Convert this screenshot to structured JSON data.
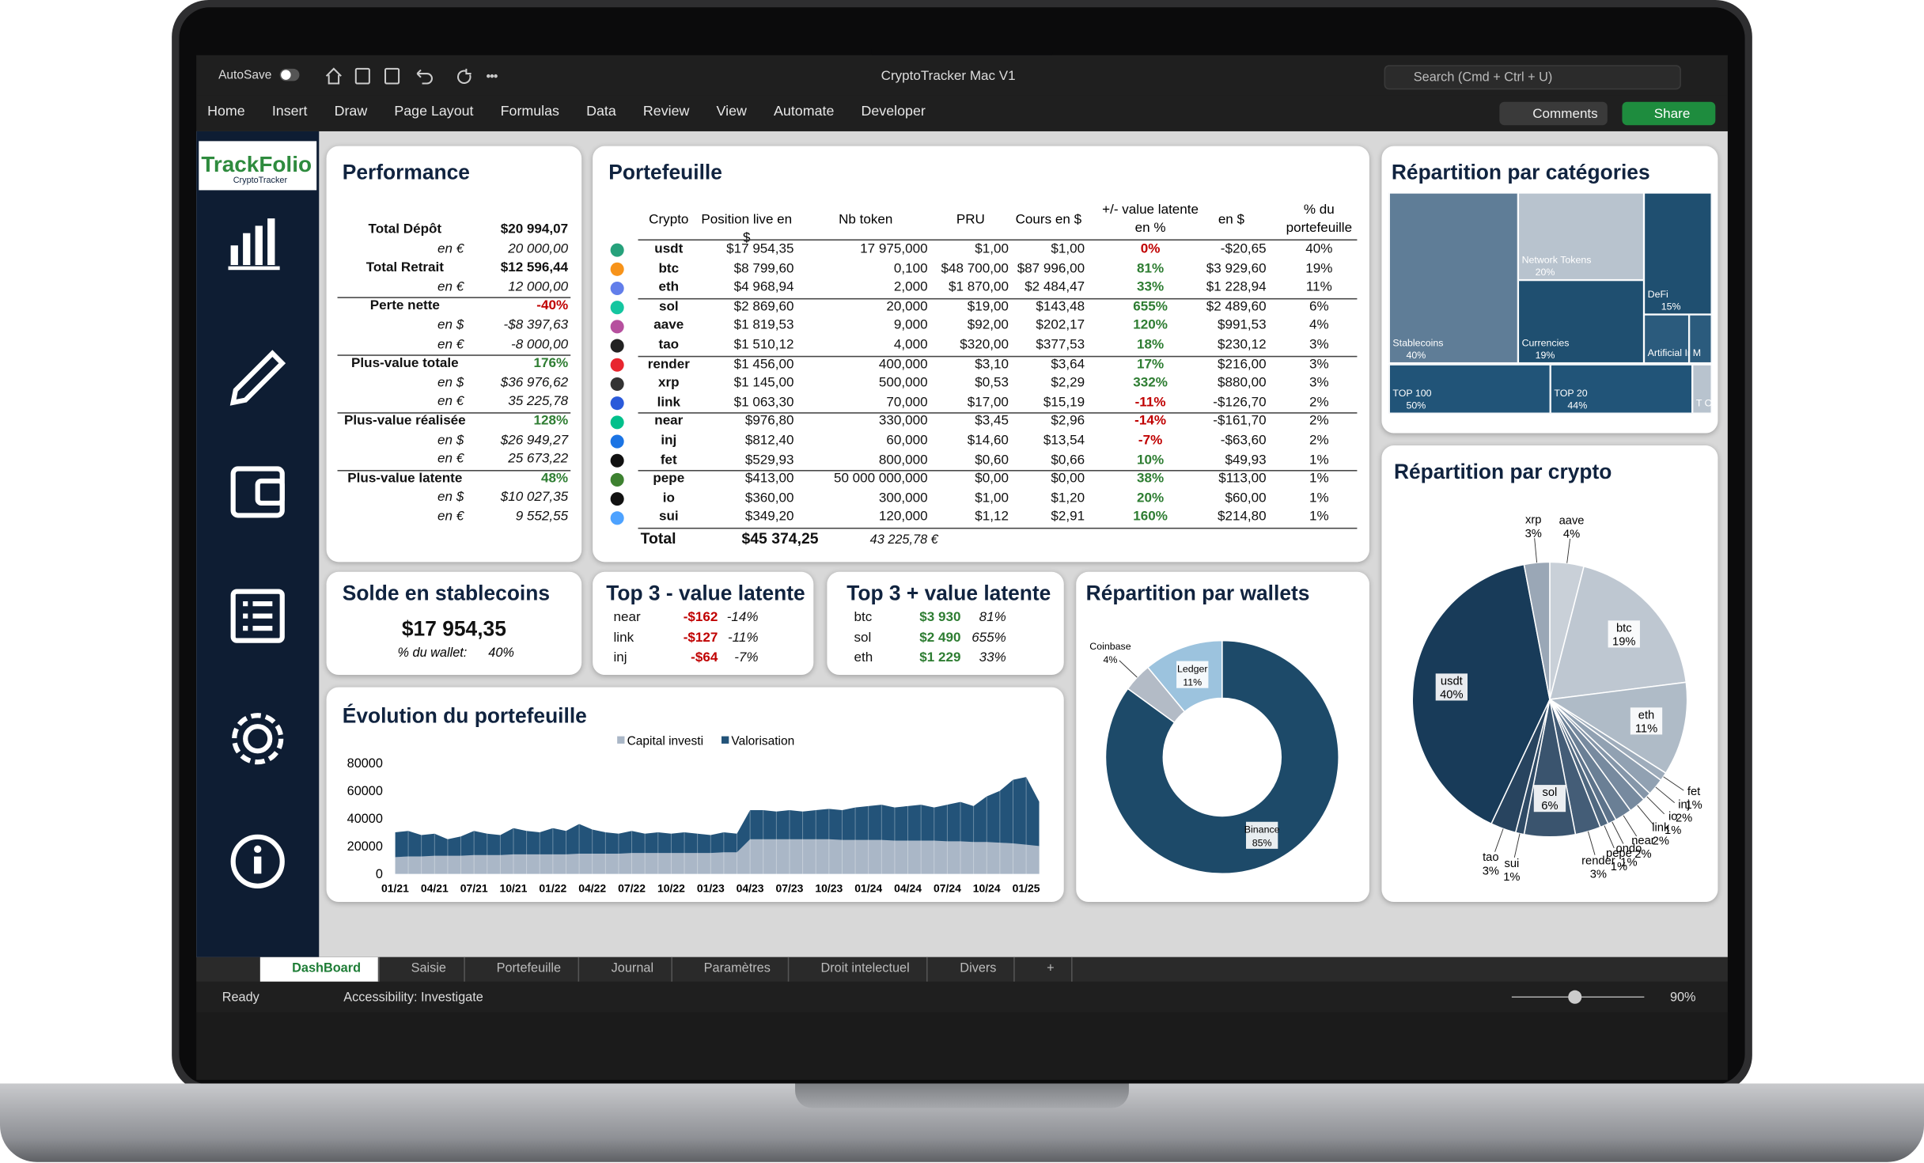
{
  "app": {
    "autosave": "AutoSave",
    "title": "CryptoTracker Mac V1",
    "search": "Search (Cmd + Ctrl + U)",
    "menu": [
      "Home",
      "Insert",
      "Draw",
      "Page Layout",
      "Formulas",
      "Data",
      "Review",
      "View",
      "Automate",
      "Developer"
    ],
    "comments": "Comments",
    "share": "Share"
  },
  "logo": {
    "name": "TrackFolio",
    "subtitle": "CryptoTracker"
  },
  "performance": {
    "title": "Performance",
    "groups": [
      {
        "label": "Total Dépôt",
        "value": "$20 994,07",
        "sub": [
          {
            "label": "en €",
            "value": "20 000,00"
          }
        ]
      },
      {
        "label": "Total Retrait",
        "value": "$12 596,44",
        "sub": [
          {
            "label": "en €",
            "value": "12 000,00"
          }
        ]
      },
      {
        "label": "Perte nette",
        "value": "-40%",
        "sub": [
          {
            "label": "en $",
            "value": "-$8 397,63"
          },
          {
            "label": "en €",
            "value": "-8 000,00"
          }
        ]
      },
      {
        "label": "Plus-value totale",
        "value": "176%",
        "sub": [
          {
            "label": "en $",
            "value": "$36 976,62"
          },
          {
            "label": "en €",
            "value": "35 225,78"
          }
        ]
      },
      {
        "label": "Plus-value réalisée",
        "value": "128%",
        "sub": [
          {
            "label": "en $",
            "value": "$26 949,27"
          },
          {
            "label": "en €",
            "value": "25 673,22"
          }
        ]
      },
      {
        "label": "Plus-value latente",
        "value": "48%",
        "sub": [
          {
            "label": "en $",
            "value": "$10 027,35"
          },
          {
            "label": "en €",
            "value": "9 552,55"
          }
        ]
      }
    ]
  },
  "portfolio": {
    "title": "Portefeuille",
    "headers": [
      "Crypto",
      "Position live en $",
      "Nb token",
      "PRU",
      "Cours en $",
      "+/- value latente en %",
      "en $",
      "% du portefeuille"
    ],
    "rows": [
      [
        "usdt",
        "$17 954,35",
        "17 975,000",
        "$1,00",
        "$1,00",
        "0%",
        "-$20,65",
        "40%"
      ],
      [
        "btc",
        "$8 799,60",
        "0,100",
        "$48 700,00",
        "$87 996,00",
        "81%",
        "$3 929,60",
        "19%"
      ],
      [
        "eth",
        "$4 968,94",
        "2,000",
        "$1 870,00",
        "$2 484,47",
        "33%",
        "$1 228,94",
        "11%"
      ],
      [
        "sol",
        "$2 869,60",
        "20,000",
        "$19,00",
        "$143,48",
        "655%",
        "$2 489,60",
        "6%"
      ],
      [
        "aave",
        "$1 819,53",
        "9,000",
        "$92,00",
        "$202,17",
        "120%",
        "$991,53",
        "4%"
      ],
      [
        "tao",
        "$1 510,12",
        "4,000",
        "$320,00",
        "$377,53",
        "18%",
        "$230,12",
        "3%"
      ],
      [
        "render",
        "$1 456,00",
        "400,000",
        "$3,10",
        "$3,64",
        "17%",
        "$216,00",
        "3%"
      ],
      [
        "xrp",
        "$1 145,00",
        "500,000",
        "$0,53",
        "$2,29",
        "332%",
        "$880,00",
        "3%"
      ],
      [
        "link",
        "$1 063,30",
        "70,000",
        "$17,00",
        "$15,19",
        "-11%",
        "-$126,70",
        "2%"
      ],
      [
        "near",
        "$976,80",
        "330,000",
        "$3,45",
        "$2,96",
        "-14%",
        "-$161,70",
        "2%"
      ],
      [
        "inj",
        "$812,40",
        "60,000",
        "$14,60",
        "$13,54",
        "-7%",
        "-$63,60",
        "2%"
      ],
      [
        "fet",
        "$529,93",
        "800,000",
        "$0,60",
        "$0,66",
        "10%",
        "$49,93",
        "1%"
      ],
      [
        "pepe",
        "$413,00",
        "50 000 000,000",
        "$0,00",
        "$0,00",
        "38%",
        "$113,00",
        "1%"
      ],
      [
        "io",
        "$360,00",
        "300,000",
        "$1,00",
        "$1,20",
        "20%",
        "$60,00",
        "1%"
      ],
      [
        "sui",
        "$349,20",
        "120,000",
        "$1,12",
        "$2,91",
        "160%",
        "$214,80",
        "1%"
      ]
    ],
    "total": {
      "label": "Total",
      "value": "$45 374,25",
      "euro": "43 225,78  €"
    }
  },
  "stablecoins": {
    "title": "Solde en stablecoins",
    "value": "$17 954,35",
    "share_label": "% du wallet:",
    "share": "40%"
  },
  "top_minus": {
    "title": "Top 3 - value latente",
    "rows": [
      [
        "near",
        "-$162",
        "-14%"
      ],
      [
        "link",
        "-$127",
        "-11%"
      ],
      [
        "inj",
        "-$64",
        "-7%"
      ]
    ]
  },
  "top_plus": {
    "title": "Top 3 + value latente",
    "rows": [
      [
        "btc",
        "$3 930",
        "81%"
      ],
      [
        "sol",
        "$2 490",
        "655%"
      ],
      [
        "eth",
        "$1 229",
        "33%"
      ]
    ]
  },
  "evolution": {
    "type": "area",
    "title": "Évolution du portefeuille",
    "categories": [
      "01/21",
      null,
      null,
      "04/21",
      null,
      null,
      "07/21",
      null,
      null,
      "10/21",
      null,
      null,
      "01/22",
      null,
      null,
      "04/22",
      null,
      null,
      "07/22",
      null,
      null,
      "10/22",
      null,
      null,
      "01/23",
      null,
      null,
      "04/23",
      null,
      null,
      "07/23",
      null,
      null,
      "10/23",
      null,
      null,
      "01/24",
      null,
      null,
      "04/24",
      null,
      null,
      "07/24",
      null,
      null,
      "10/24",
      null,
      null,
      "01/25",
      null
    ],
    "ylim": [
      0,
      80000
    ],
    "yticks": [
      0,
      20000,
      40000,
      60000,
      80000
    ],
    "series": [
      {
        "name": "Capital investi",
        "color": "#aab7c7",
        "values": [
          12000,
          12500,
          12500,
          13000,
          13000,
          13000,
          13500,
          13500,
          13500,
          14000,
          14000,
          14000,
          14000,
          14000,
          14500,
          14500,
          14500,
          14500,
          15000,
          15000,
          15000,
          15000,
          15000,
          15000,
          15000,
          15500,
          15500,
          25000,
          25000,
          25000,
          25000,
          25000,
          25000,
          25000,
          24500,
          24500,
          24500,
          24500,
          24000,
          24000,
          24000,
          24000,
          23500,
          23500,
          23000,
          23000,
          22500,
          22000,
          21000,
          20000
        ]
      },
      {
        "name": "Valorisation",
        "color": "#235379",
        "values": [
          30000,
          31000,
          28000,
          29000,
          25000,
          27000,
          31000,
          29000,
          28000,
          33000,
          31000,
          30000,
          33000,
          31000,
          36000,
          32000,
          30000,
          29000,
          31000,
          29000,
          30000,
          29000,
          30000,
          29000,
          28000,
          30000,
          29000,
          46000,
          46000,
          45000,
          46000,
          45000,
          46000,
          47000,
          46000,
          48000,
          49000,
          50000,
          48000,
          49000,
          50000,
          48000,
          50000,
          52000,
          49000,
          56000,
          60000,
          68000,
          70000,
          52000
        ]
      }
    ]
  },
  "wallets": {
    "type": "donut",
    "title": "Répartition par wallets",
    "categories": [
      "Binance",
      "Coinbase",
      "Ledger"
    ],
    "values": [
      85,
      4,
      11
    ],
    "value_labels": [
      "85%",
      "4%",
      "11%"
    ],
    "colors": [
      "#1d4a69",
      "#b3bbc6",
      "#9cc3de"
    ]
  },
  "categories_chart": {
    "type": "treemap",
    "title": "Répartition par catégories",
    "categories": [
      "Stablecoins",
      "Network Tokens",
      "Currencies",
      "DeFi",
      "Artificial Intelligenc e...",
      "M",
      "TOP 100",
      "TOP 20",
      "T O P..."
    ],
    "values": [
      40,
      20,
      19,
      15,
      4,
      2,
      50,
      44,
      6
    ],
    "value_labels": [
      "40%",
      "20%",
      "19%",
      "15%",
      null,
      null,
      "50%",
      "44%",
      null
    ],
    "colors": [
      "#5f7d97",
      "#b8c3ce",
      "#1f4f70",
      "#1f4f70",
      "#2b5b7d",
      "#2b5b7d",
      "#215478",
      "#215478",
      "#b8c3ce"
    ]
  },
  "crypto_chart": {
    "type": "pie",
    "title": "Répartition par crypto",
    "categories": [
      "aave",
      "btc",
      "eth",
      "fet",
      "inj",
      "io",
      "link",
      "near",
      "ondo",
      "pepe",
      "render",
      "sol",
      "sui",
      "tao",
      "usdt",
      "xrp"
    ],
    "values": [
      4,
      19,
      11,
      1,
      2,
      1,
      2,
      2,
      1,
      1,
      3,
      6,
      1,
      3,
      40,
      3
    ],
    "value_labels": [
      "4%",
      "19%",
      "11%",
      "1%",
      "2%",
      "1%",
      "2%",
      "2%",
      "1%",
      "1%",
      "3%",
      "6%",
      "1%",
      "3%",
      "40%",
      "3%"
    ],
    "colors": [
      "#c9d0d8",
      "#bec7d1",
      "#afbbc7",
      "#9eacbb",
      "#91a1b2",
      "#8596a9",
      "#778a9f",
      "#6a7f95",
      "#5d738b",
      "#506880",
      "#445d77",
      "#3a546e",
      "#304b66",
      "#28445f",
      "#183b59",
      "#9aa7b6"
    ]
  },
  "tabs": [
    "DashBoard",
    "Saisie",
    "Portefeuille",
    "Journal",
    "Paramètres",
    "Droit intelectuel",
    "Divers",
    "+"
  ],
  "status": {
    "ready": "Ready",
    "accessibility": "Accessibility: Investigate",
    "zoom": "90%"
  }
}
